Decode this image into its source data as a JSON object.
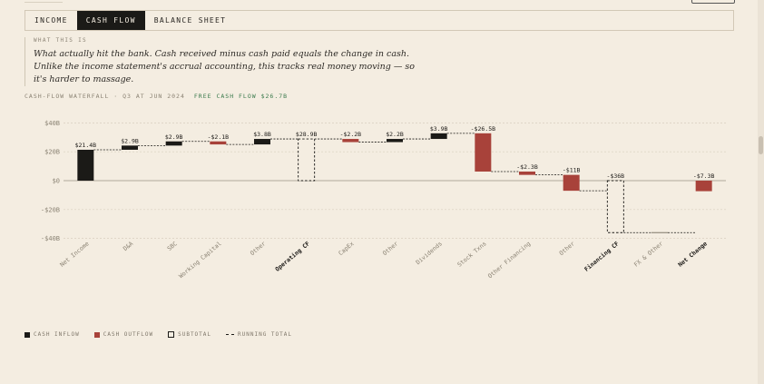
{
  "tabs": [
    {
      "label": "INCOME",
      "active": false
    },
    {
      "label": "CASH FLOW",
      "active": true
    },
    {
      "label": "BALANCE SHEET",
      "active": false
    }
  ],
  "note": {
    "label": "WHAT THIS IS",
    "body": "What actually hit the bank. Cash received minus cash paid equals the change in cash. Unlike the income statement's accrual accounting, this tracks real money moving — so it's harder to massage."
  },
  "chart_header": {
    "title": "CASH-FLOW WATERFALL · Q3 AT JUN 2024",
    "highlight": "FREE CASH FLOW $26.7B"
  },
  "colors": {
    "inflow": "#1b1a17",
    "outflow": "#a8423a",
    "highlight": "#3a7a4c",
    "background": "#f4ede1"
  },
  "chart_data": {
    "type": "waterfall",
    "y_unit": "$B",
    "ylim": [
      -40,
      40
    ],
    "yticks": [
      40,
      20,
      0,
      -20,
      -40
    ],
    "ytick_labels": [
      "$40B",
      "$20B",
      "$0",
      "-$20B",
      "-$40B"
    ],
    "grid": true,
    "steps": [
      {
        "label": "Net Income",
        "value": 21.4,
        "value_label": "$21.4B",
        "kind": "inflow"
      },
      {
        "label": "D&A",
        "value": 2.9,
        "value_label": "$2.9B",
        "kind": "inflow"
      },
      {
        "label": "SBC",
        "value": 2.9,
        "value_label": "$2.9B",
        "kind": "inflow"
      },
      {
        "label": "Working Capital",
        "value": -2.1,
        "value_label": "-$2.1B",
        "kind": "outflow"
      },
      {
        "label": "Other",
        "value": 3.8,
        "value_label": "$3.8B",
        "kind": "inflow"
      },
      {
        "label": "Operating CF",
        "value": 28.9,
        "value_label": "$28.9B",
        "kind": "subtotal"
      },
      {
        "label": "CapEx",
        "value": -2.2,
        "value_label": "-$2.2B",
        "kind": "outflow"
      },
      {
        "label": "Other",
        "value": 2.2,
        "value_label": "$2.2B",
        "kind": "inflow"
      },
      {
        "label": "Dividends",
        "value": 3.9,
        "value_label": "$3.9B",
        "kind": "inflow"
      },
      {
        "label": "Stock Txns",
        "value": -26.5,
        "value_label": "-$26.5B",
        "kind": "outflow"
      },
      {
        "label": "Other Financing",
        "value": -2.3,
        "value_label": "-$2.3B",
        "kind": "outflow"
      },
      {
        "label": "Other",
        "value": -11,
        "value_label": "-$11B",
        "kind": "outflow"
      },
      {
        "label": "Financing CF",
        "value": -36,
        "value_label": "-$36B",
        "kind": "subtotal"
      },
      {
        "label": "FX & Other",
        "value": 0,
        "value_label": "",
        "kind": "inflow"
      },
      {
        "label": "Net Change",
        "value": -7.3,
        "value_label": "-$7.3B",
        "kind": "total"
      }
    ]
  },
  "legend": [
    {
      "label": "CASH INFLOW",
      "kind": "in"
    },
    {
      "label": "CASH OUTFLOW",
      "kind": "out"
    },
    {
      "label": "SUBTOTAL",
      "kind": "sub"
    },
    {
      "label": "RUNNING TOTAL",
      "kind": "run"
    }
  ]
}
